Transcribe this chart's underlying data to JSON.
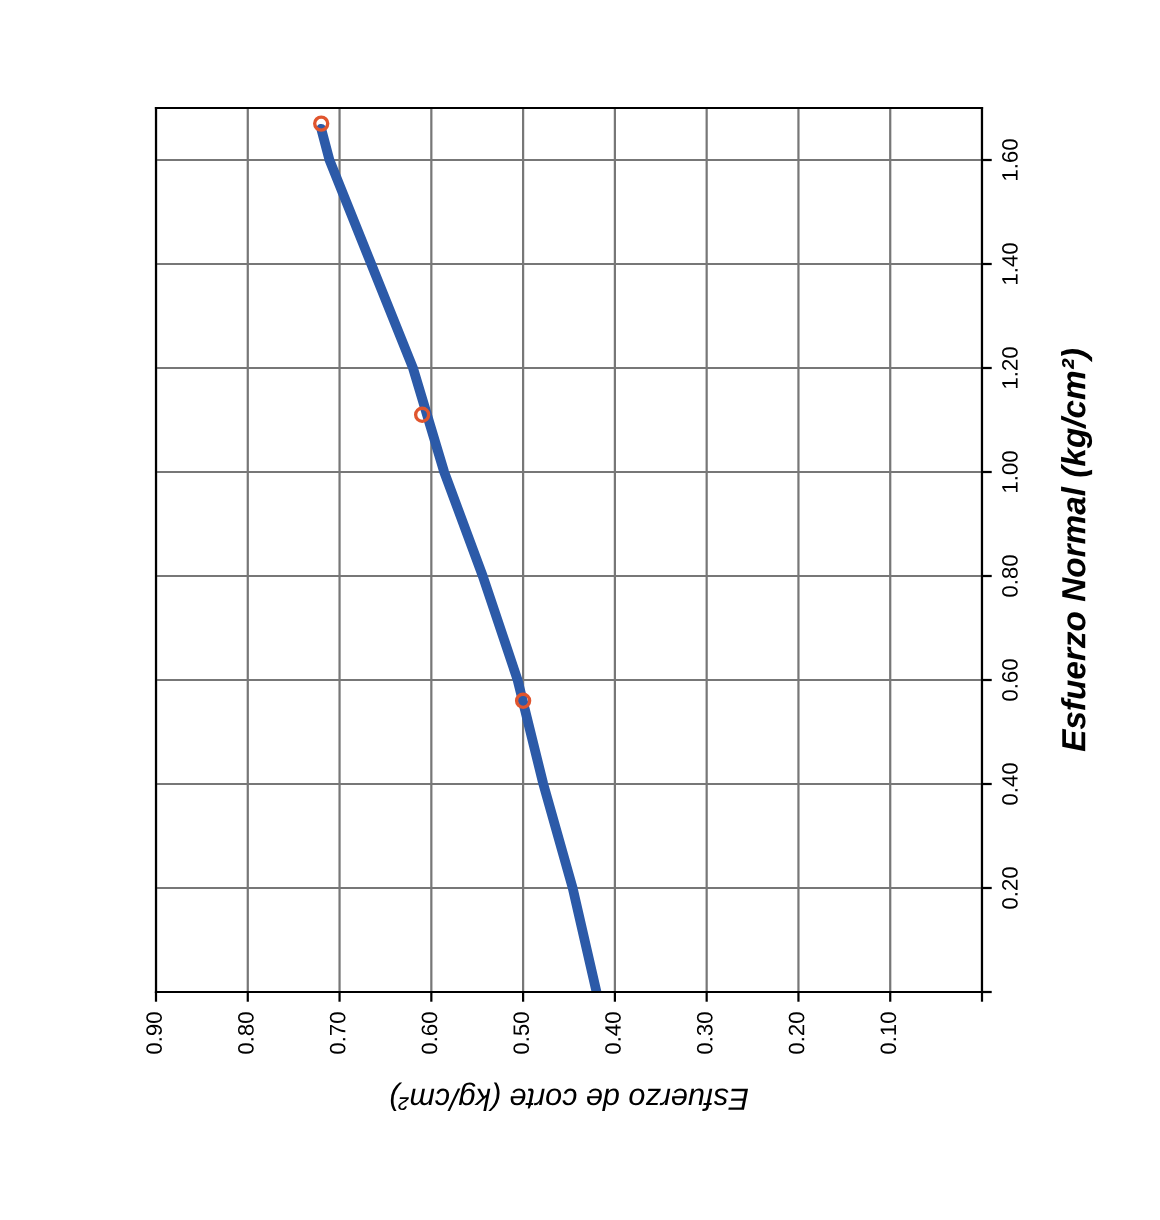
{
  "chart_data": {
    "type": "scatter",
    "xlabel": "Esfuerzo de corte (kg/cm²)",
    "ylabel": "Esfuerzo Normal (kg/cm²)",
    "xlim": [
      0.9,
      0
    ],
    "xticks": [
      {
        "value": 0.9,
        "label": "0.90"
      },
      {
        "value": 0.8,
        "label": "0.80"
      },
      {
        "value": 0.7,
        "label": "0.70"
      },
      {
        "value": 0.6,
        "label": "0.60"
      },
      {
        "value": 0.5,
        "label": "0.50"
      },
      {
        "value": 0.4,
        "label": "0.40"
      },
      {
        "value": 0.3,
        "label": "0.30"
      },
      {
        "value": 0.2,
        "label": "0.20"
      },
      {
        "value": 0.1,
        "label": "0.10"
      },
      {
        "value": 0,
        "label": null
      }
    ],
    "ylim": [
      0,
      1.7
    ],
    "yticks": [
      {
        "value": 0,
        "label": null
      },
      {
        "value": 0.2,
        "label": "0.20"
      },
      {
        "value": 0.4,
        "label": "0.40"
      },
      {
        "value": 0.6,
        "label": "0.60"
      },
      {
        "value": 0.8,
        "label": "0.80"
      },
      {
        "value": 1.0,
        "label": "1.00"
      },
      {
        "value": 1.2,
        "label": "1.20"
      },
      {
        "value": 1.4,
        "label": "1.40"
      },
      {
        "value": 1.6,
        "label": "1.60"
      }
    ],
    "grid": true,
    "legend": false,
    "series": [
      {
        "type": "line",
        "color": "#2c5aa8",
        "marker": "none",
        "line_style": "solid",
        "x": [
          0.42,
          0.446,
          0.478,
          0.506,
          0.544,
          0.586,
          0.62,
          0.711,
          0.72
        ],
        "values": [
          0,
          0.2,
          0.4,
          0.6,
          0.8,
          1.0,
          1.2,
          1.6,
          1.66
        ]
      },
      {
        "color": "#e0552e",
        "marker": "circle",
        "x": [
          0.72,
          0.61,
          0.5
        ],
        "values": [
          1.67,
          1.11,
          0.56
        ]
      }
    ]
  }
}
